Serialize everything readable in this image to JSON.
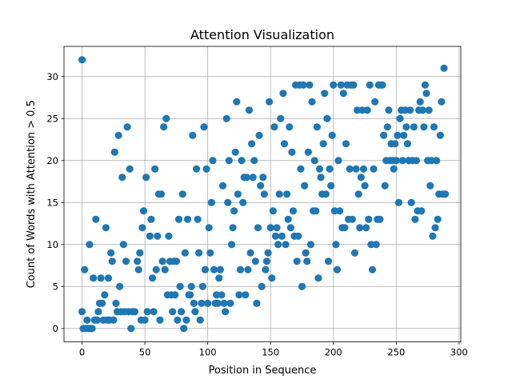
{
  "chart_data": {
    "type": "scatter",
    "title": "Attention Visualization",
    "xlabel": "Position in Sequence",
    "ylabel": "Count of Words with Attention > 0.5",
    "xlim": [
      -14.35,
      301.35
    ],
    "ylim": [
      -1.6,
      33.6
    ],
    "xticks": [
      0,
      50,
      100,
      150,
      200,
      250,
      300
    ],
    "yticks": [
      0,
      5,
      10,
      15,
      20,
      25,
      30
    ],
    "grid": true,
    "marker_color": "#1f77b4",
    "points": [
      [
        0,
        32
      ],
      [
        0,
        2
      ],
      [
        1,
        0
      ],
      [
        2,
        7
      ],
      [
        3,
        0
      ],
      [
        4,
        1
      ],
      [
        5,
        0
      ],
      [
        6,
        10
      ],
      [
        7,
        0
      ],
      [
        8,
        0
      ],
      [
        9,
        6
      ],
      [
        10,
        1
      ],
      [
        11,
        13
      ],
      [
        12,
        1
      ],
      [
        13,
        2
      ],
      [
        14,
        3
      ],
      [
        15,
        6
      ],
      [
        16,
        3
      ],
      [
        17,
        1
      ],
      [
        18,
        4
      ],
      [
        19,
        12
      ],
      [
        20,
        1
      ],
      [
        21,
        6
      ],
      [
        22,
        1
      ],
      [
        23,
        9
      ],
      [
        24,
        8
      ],
      [
        25,
        1
      ],
      [
        26,
        21
      ],
      [
        27,
        3
      ],
      [
        28,
        2
      ],
      [
        29,
        23
      ],
      [
        30,
        5
      ],
      [
        31,
        2
      ],
      [
        32,
        18
      ],
      [
        33,
        10
      ],
      [
        34,
        2
      ],
      [
        35,
        8
      ],
      [
        36,
        24
      ],
      [
        37,
        2
      ],
      [
        38,
        19
      ],
      [
        39,
        0
      ],
      [
        40,
        2
      ],
      [
        42,
        2
      ],
      [
        44,
        8
      ],
      [
        45,
        7
      ],
      [
        46,
        9
      ],
      [
        47,
        1
      ],
      [
        48,
        12
      ],
      [
        49,
        14
      ],
      [
        50,
        1
      ],
      [
        51,
        18
      ],
      [
        52,
        2
      ],
      [
        54,
        11
      ],
      [
        55,
        13
      ],
      [
        56,
        6
      ],
      [
        57,
        2
      ],
      [
        58,
        19
      ],
      [
        59,
        7
      ],
      [
        60,
        11
      ],
      [
        61,
        16
      ],
      [
        62,
        1
      ],
      [
        63,
        16
      ],
      [
        64,
        8
      ],
      [
        65,
        24
      ],
      [
        66,
        7
      ],
      [
        67,
        25
      ],
      [
        68,
        4
      ],
      [
        69,
        11
      ],
      [
        70,
        8
      ],
      [
        71,
        4
      ],
      [
        72,
        2
      ],
      [
        73,
        8
      ],
      [
        74,
        4
      ],
      [
        75,
        8
      ],
      [
        76,
        1
      ],
      [
        77,
        13
      ],
      [
        78,
        5
      ],
      [
        79,
        2
      ],
      [
        80,
        16
      ],
      [
        81,
        0
      ],
      [
        82,
        9
      ],
      [
        83,
        1
      ],
      [
        84,
        13
      ],
      [
        85,
        4
      ],
      [
        86,
        4
      ],
      [
        87,
        5
      ],
      [
        88,
        23
      ],
      [
        89,
        3
      ],
      [
        90,
        2
      ],
      [
        91,
        19
      ],
      [
        92,
        13
      ],
      [
        93,
        9
      ],
      [
        94,
        1
      ],
      [
        95,
        3
      ],
      [
        96,
        5
      ],
      [
        97,
        24
      ],
      [
        98,
        7
      ],
      [
        99,
        19
      ],
      [
        100,
        3
      ],
      [
        101,
        12
      ],
      [
        102,
        9
      ],
      [
        103,
        15
      ],
      [
        104,
        20
      ],
      [
        105,
        7
      ],
      [
        106,
        3
      ],
      [
        107,
        4
      ],
      [
        108,
        3
      ],
      [
        109,
        6
      ],
      [
        110,
        7
      ],
      [
        111,
        4
      ],
      [
        112,
        17
      ],
      [
        113,
        3
      ],
      [
        114,
        2
      ],
      [
        115,
        25
      ],
      [
        116,
        15
      ],
      [
        117,
        20
      ],
      [
        118,
        3
      ],
      [
        119,
        10
      ],
      [
        120,
        12
      ],
      [
        121,
        14
      ],
      [
        122,
        21
      ],
      [
        123,
        27
      ],
      [
        124,
        16
      ],
      [
        125,
        4
      ],
      [
        126,
        7
      ],
      [
        127,
        20
      ],
      [
        128,
        15
      ],
      [
        129,
        18
      ],
      [
        130,
        4
      ],
      [
        131,
        18
      ],
      [
        132,
        7
      ],
      [
        133,
        26
      ],
      [
        134,
        9
      ],
      [
        135,
        22
      ],
      [
        136,
        18
      ],
      [
        137,
        20
      ],
      [
        138,
        8
      ],
      [
        139,
        3
      ],
      [
        140,
        12
      ],
      [
        141,
        23
      ],
      [
        142,
        17
      ],
      [
        143,
        5
      ],
      [
        144,
        18
      ],
      [
        145,
        16
      ],
      [
        146,
        7
      ],
      [
        147,
        8
      ],
      [
        148,
        9
      ],
      [
        149,
        27
      ],
      [
        150,
        12
      ],
      [
        151,
        6
      ],
      [
        152,
        14
      ],
      [
        153,
        24
      ],
      [
        154,
        11
      ],
      [
        155,
        12
      ],
      [
        156,
        10
      ],
      [
        157,
        16
      ],
      [
        158,
        25
      ],
      [
        159,
        11
      ],
      [
        160,
        28
      ],
      [
        161,
        22
      ],
      [
        162,
        10
      ],
      [
        163,
        16
      ],
      [
        164,
        13
      ],
      [
        165,
        24
      ],
      [
        166,
        12
      ],
      [
        167,
        21
      ],
      [
        168,
        14
      ],
      [
        169,
        11
      ],
      [
        170,
        29
      ],
      [
        171,
        8
      ],
      [
        172,
        11
      ],
      [
        173,
        29
      ],
      [
        174,
        19
      ],
      [
        175,
        5
      ],
      [
        176,
        29
      ],
      [
        177,
        17
      ],
      [
        178,
        9
      ],
      [
        179,
        8
      ],
      [
        180,
        21
      ],
      [
        181,
        29
      ],
      [
        182,
        10
      ],
      [
        183,
        27
      ],
      [
        184,
        14
      ],
      [
        185,
        20
      ],
      [
        186,
        14
      ],
      [
        187,
        24
      ],
      [
        188,
        6
      ],
      [
        189,
        19
      ],
      [
        190,
        18
      ],
      [
        191,
        16
      ],
      [
        192,
        22
      ],
      [
        193,
        28
      ],
      [
        194,
        16
      ],
      [
        195,
        25
      ],
      [
        196,
        8
      ],
      [
        197,
        19
      ],
      [
        198,
        17
      ],
      [
        199,
        23
      ],
      [
        200,
        29
      ],
      [
        201,
        14
      ],
      [
        202,
        10
      ],
      [
        203,
        7
      ],
      [
        204,
        20
      ],
      [
        205,
        14
      ],
      [
        206,
        29
      ],
      [
        207,
        12
      ],
      [
        208,
        28
      ],
      [
        209,
        12
      ],
      [
        210,
        22
      ],
      [
        211,
        29
      ],
      [
        212,
        13
      ],
      [
        213,
        19
      ],
      [
        214,
        29
      ],
      [
        215,
        13
      ],
      [
        216,
        29
      ],
      [
        217,
        9
      ],
      [
        218,
        19
      ],
      [
        219,
        26
      ],
      [
        220,
        16
      ],
      [
        221,
        12
      ],
      [
        222,
        18
      ],
      [
        223,
        26
      ],
      [
        224,
        19
      ],
      [
        225,
        17
      ],
      [
        226,
        12
      ],
      [
        227,
        26
      ],
      [
        228,
        13
      ],
      [
        229,
        29
      ],
      [
        230,
        10
      ],
      [
        231,
        7
      ],
      [
        232,
        19
      ],
      [
        233,
        27
      ],
      [
        234,
        10
      ],
      [
        235,
        13
      ],
      [
        236,
        29
      ],
      [
        237,
        13
      ],
      [
        238,
        29
      ],
      [
        239,
        29
      ],
      [
        240,
        23
      ],
      [
        241,
        17
      ],
      [
        242,
        20
      ],
      [
        243,
        24
      ],
      [
        244,
        26
      ],
      [
        245,
        20
      ],
      [
        246,
        22
      ],
      [
        247,
        20
      ],
      [
        248,
        19
      ],
      [
        249,
        22
      ],
      [
        250,
        20
      ],
      [
        251,
        23
      ],
      [
        252,
        15
      ],
      [
        253,
        25
      ],
      [
        254,
        26
      ],
      [
        255,
        20
      ],
      [
        256,
        23
      ],
      [
        257,
        26
      ],
      [
        258,
        24
      ],
      [
        259,
        22
      ],
      [
        260,
        20
      ],
      [
        261,
        26
      ],
      [
        262,
        15
      ],
      [
        263,
        20
      ],
      [
        264,
        24
      ],
      [
        265,
        13
      ],
      [
        266,
        20
      ],
      [
        267,
        14
      ],
      [
        268,
        26
      ],
      [
        269,
        27
      ],
      [
        270,
        14
      ],
      [
        271,
        26
      ],
      [
        272,
        24
      ],
      [
        273,
        29
      ],
      [
        274,
        28
      ],
      [
        275,
        20
      ],
      [
        276,
        26
      ],
      [
        277,
        17
      ],
      [
        278,
        20
      ],
      [
        279,
        11
      ],
      [
        280,
        24
      ],
      [
        281,
        12
      ],
      [
        282,
        20
      ],
      [
        283,
        13
      ],
      [
        284,
        16
      ],
      [
        285,
        23
      ],
      [
        286,
        27
      ],
      [
        287,
        16
      ],
      [
        288,
        31
      ],
      [
        289,
        16
      ]
    ]
  }
}
